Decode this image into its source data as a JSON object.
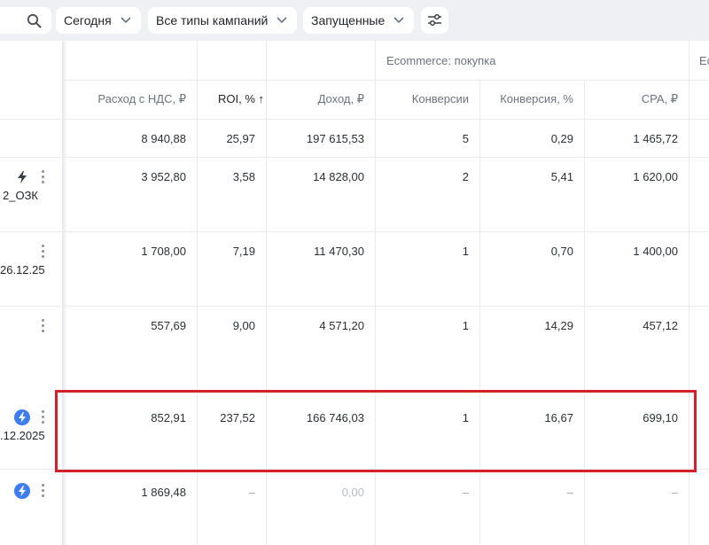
{
  "toolbar": {
    "search_icon": "search-icon",
    "date_filter": "Сегодня",
    "type_filter": "Все типы кампаний",
    "status_filter": "Запущенные",
    "settings_icon": "sliders-icon"
  },
  "table": {
    "group_header": "Ecommerce: покупка",
    "group_header_next": "Ec",
    "columns": {
      "spend": "Расход с НДС, ₽",
      "roi": "ROI, % ↑",
      "income": "Доход, ₽",
      "conversions": "Конверсии",
      "conversion_rate": "Конверсия, %",
      "cpa": "CPA, ₽"
    },
    "totals": {
      "spend": "8 940,88",
      "roi": "25,97",
      "income": "197 615,53",
      "conversions": "5",
      "conversion_rate": "0,29",
      "cpa": "1 465,72"
    },
    "rows": [
      {
        "name_fragment": "2_ОЗК",
        "icon": "bolt-icon",
        "spend": "3 952,80",
        "roi": "3,58",
        "income": "14 828,00",
        "conversions": "2",
        "conversion_rate": "5,41",
        "cpa": "1 620,00"
      },
      {
        "name_fragment": "26.12.25",
        "icon": "",
        "spend": "1 708,00",
        "roi": "7,19",
        "income": "11 470,30",
        "conversions": "1",
        "conversion_rate": "0,70",
        "cpa": "1 400,00"
      },
      {
        "name_fragment": "",
        "icon": "",
        "spend": "557,69",
        "roi": "9,00",
        "income": "4 571,20",
        "conversions": "1",
        "conversion_rate": "14,29",
        "cpa": "457,12"
      },
      {
        "name_fragment": ".12.2025",
        "icon": "bolt-blue-icon",
        "spend": "852,91",
        "roi": "237,52",
        "income": "166 746,03",
        "conversions": "1",
        "conversion_rate": "16,67",
        "cpa": "699,10"
      },
      {
        "name_fragment": "",
        "icon": "bolt-blue-icon",
        "spend": "1 869,48",
        "roi": "–",
        "income": "0,00",
        "conversions": "–",
        "conversion_rate": "–",
        "cpa": "–"
      }
    ]
  }
}
